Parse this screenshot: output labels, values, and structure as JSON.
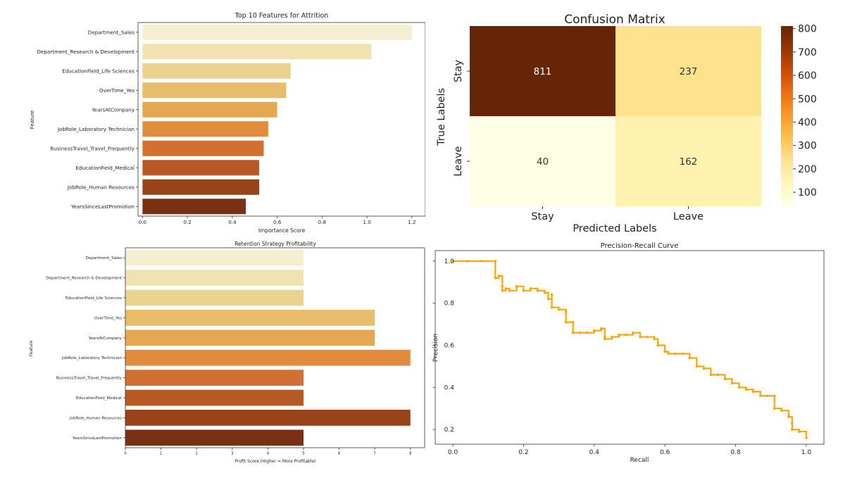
{
  "chart_data": [
    {
      "type": "bar",
      "orientation": "horizontal",
      "title": "Top 10 Features for Attrition",
      "xlabel": "Importance Score",
      "ylabel": "Feature",
      "categories": [
        "Department_Sales",
        "Department_Research & Development",
        "EducationField_Life Sciences",
        "OverTime_Yes",
        "YearsAtCompany",
        "JobRole_Laboratory Technician",
        "BusinessTravel_Travel_Frequently",
        "EducationField_Medical",
        "JobRole_Human Resources",
        "YearsSinceLastPromotion"
      ],
      "values": [
        1.2,
        1.02,
        0.66,
        0.64,
        0.6,
        0.56,
        0.54,
        0.52,
        0.52,
        0.46
      ],
      "xlim": [
        -0.02,
        1.26
      ],
      "xticks": [
        "0.0",
        "0.2",
        "0.4",
        "0.6",
        "0.8",
        "1.0",
        "1.2"
      ],
      "colors": [
        "#f6eed3",
        "#f1e2b2",
        "#ebd38f",
        "#e7bc6a",
        "#e4a852",
        "#e18b3d",
        "#d07032",
        "#b85823",
        "#98431a",
        "#7a3012"
      ]
    },
    {
      "type": "heatmap",
      "title": "Confusion Matrix",
      "xlabel": "Predicted Labels",
      "ylabel": "True Labels",
      "x_categories": [
        "Stay",
        "Leave"
      ],
      "y_categories": [
        "Stay",
        "Leave"
      ],
      "values": [
        [
          811,
          237
        ],
        [
          40,
          162
        ]
      ],
      "colorbar_ticks": [
        "100",
        "200",
        "300",
        "400",
        "500",
        "600",
        "700",
        "800"
      ],
      "colorbar_range": [
        40,
        811
      ],
      "colormap": "YlOrBr"
    },
    {
      "type": "bar",
      "orientation": "horizontal",
      "title": "Retention Strategy Profitability",
      "xlabel": "Profit Score (Higher = More Profitable)",
      "ylabel": "Feature",
      "categories": [
        "Department_Sales",
        "Department_Research & Development",
        "EducationField_Life Sciences",
        "OverTime_Yes",
        "YearsAtCompany",
        "JobRole_Laboratory Technician",
        "BusinessTravel_Travel_Frequently",
        "EducationField_Medical",
        "JobRole_Human Resources",
        "YearsSinceLastPromotion"
      ],
      "values": [
        5,
        5,
        5,
        7,
        7,
        8,
        5,
        5,
        8,
        5
      ],
      "xlim": [
        0,
        8.4
      ],
      "xticks": [
        "0",
        "1",
        "2",
        "3",
        "4",
        "5",
        "6",
        "7",
        "8"
      ],
      "colors": [
        "#f6eed3",
        "#f1e2b2",
        "#ebd38f",
        "#e7bc6a",
        "#e4a852",
        "#e18b3d",
        "#d07032",
        "#b85823",
        "#98431a",
        "#7a3012"
      ]
    },
    {
      "type": "line",
      "title": "Precision-Recall Curve",
      "xlabel": "Recall",
      "ylabel": "Precision",
      "xlim": [
        -0.05,
        1.05
      ],
      "ylim": [
        0.13,
        1.05
      ],
      "xticks": [
        "0.0",
        "0.2",
        "0.4",
        "0.6",
        "0.8",
        "1.0"
      ],
      "yticks": [
        "0.2",
        "0.4",
        "0.6",
        "0.8",
        "1.0"
      ],
      "color": "#ffa500",
      "x": [
        0.0,
        0.04,
        0.08,
        0.12,
        0.12,
        0.13,
        0.14,
        0.14,
        0.15,
        0.16,
        0.18,
        0.2,
        0.22,
        0.24,
        0.26,
        0.27,
        0.28,
        0.28,
        0.3,
        0.32,
        0.32,
        0.34,
        0.34,
        0.36,
        0.38,
        0.4,
        0.42,
        0.43,
        0.43,
        0.45,
        0.47,
        0.49,
        0.51,
        0.53,
        0.55,
        0.57,
        0.58,
        0.6,
        0.61,
        0.63,
        0.65,
        0.67,
        0.69,
        0.71,
        0.73,
        0.75,
        0.77,
        0.79,
        0.81,
        0.83,
        0.85,
        0.87,
        0.89,
        0.91,
        0.91,
        0.93,
        0.95,
        0.96,
        0.96,
        0.98,
        1.0
      ],
      "y": [
        1.0,
        1.0,
        1.0,
        1.0,
        0.92,
        0.93,
        0.88,
        0.86,
        0.87,
        0.86,
        0.88,
        0.86,
        0.87,
        0.86,
        0.85,
        0.82,
        0.84,
        0.78,
        0.77,
        0.76,
        0.71,
        0.71,
        0.66,
        0.66,
        0.66,
        0.67,
        0.68,
        0.64,
        0.63,
        0.64,
        0.65,
        0.65,
        0.66,
        0.64,
        0.64,
        0.63,
        0.6,
        0.57,
        0.56,
        0.56,
        0.56,
        0.54,
        0.5,
        0.49,
        0.46,
        0.46,
        0.44,
        0.42,
        0.4,
        0.39,
        0.38,
        0.36,
        0.36,
        0.36,
        0.3,
        0.29,
        0.26,
        0.23,
        0.2,
        0.19,
        0.16
      ]
    }
  ]
}
